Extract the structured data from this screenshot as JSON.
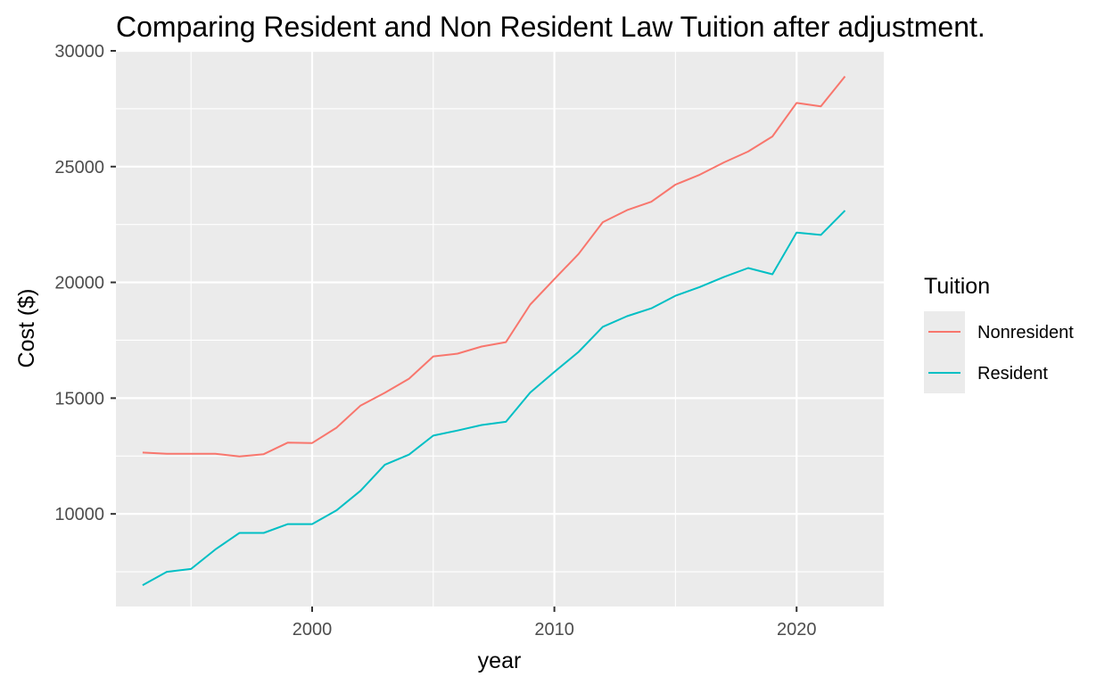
{
  "chart_data": {
    "type": "line",
    "title": "Comparing Resident and Non Resident Law Tuition after adjustment.",
    "xlabel": "year",
    "ylabel": "Cost ($)",
    "xlim": [
      1991.9,
      2023.6
    ],
    "ylim": [
      6000,
      30000
    ],
    "x_ticks": [
      2000,
      2010,
      2020
    ],
    "x_tick_labels": [
      "2000",
      "2010",
      "2020"
    ],
    "y_ticks": [
      10000,
      15000,
      20000,
      25000,
      30000
    ],
    "y_tick_labels": [
      "10000",
      "15000",
      "20000",
      "25000",
      "30000"
    ],
    "grid": true,
    "legend": {
      "title": "Tuition",
      "placement": "right"
    },
    "x": [
      1993,
      1994,
      1995,
      1996,
      1997,
      1998,
      1999,
      2000,
      2001,
      2002,
      2003,
      2004,
      2005,
      2006,
      2007,
      2008,
      2009,
      2010,
      2011,
      2012,
      2013,
      2014,
      2015,
      2016,
      2017,
      2018,
      2019,
      2020,
      2021,
      2022
    ],
    "series": [
      {
        "name": "Nonresident",
        "color": "#F8766D",
        "values": [
          12650,
          12600,
          12600,
          12600,
          12480,
          12580,
          13080,
          13060,
          13720,
          14680,
          15230,
          15840,
          16800,
          16920,
          17230,
          17420,
          19040,
          20140,
          21230,
          22600,
          23120,
          23480,
          24220,
          24650,
          25180,
          25650,
          26300,
          27750,
          27600,
          28900
        ]
      },
      {
        "name": "Resident",
        "color": "#00BFC4",
        "values": [
          6920,
          7500,
          7620,
          8460,
          9180,
          9180,
          9560,
          9560,
          10150,
          11000,
          12120,
          12560,
          13380,
          13600,
          13840,
          13980,
          15240,
          16130,
          17000,
          18080,
          18540,
          18880,
          19420,
          19800,
          20230,
          20620,
          20350,
          22150,
          22050,
          23100
        ]
      }
    ]
  }
}
